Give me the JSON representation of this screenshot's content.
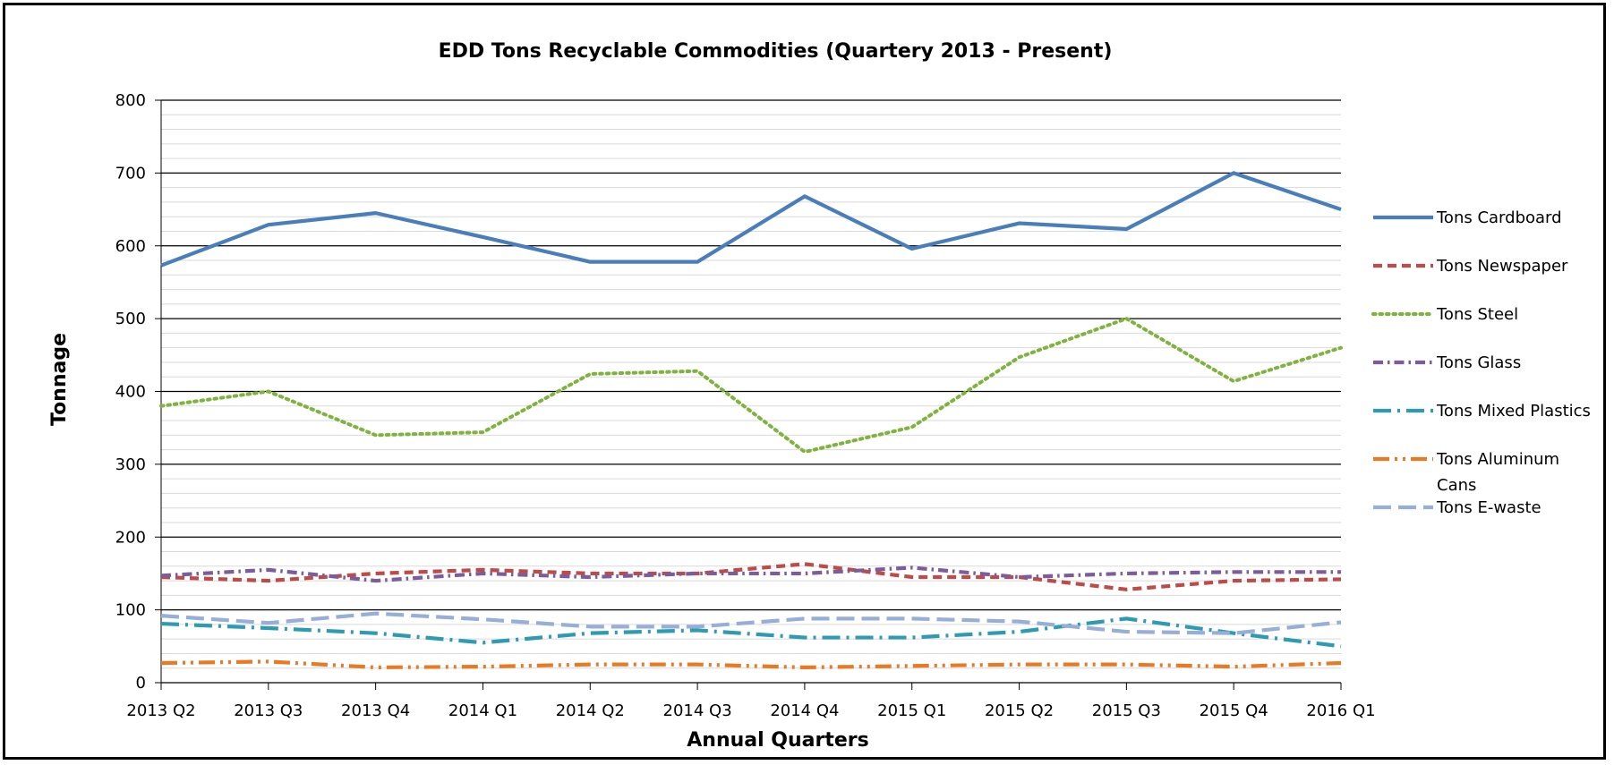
{
  "chart_data": {
    "type": "line",
    "title": "EDD Tons Recyclable Commodities (Quartery 2013 - Present)",
    "xlabel": "Annual Quarters",
    "ylabel": "Tonnage",
    "ylim": [
      0,
      800
    ],
    "ytick_step": 100,
    "minor_gridlines": true,
    "legend_position": "right",
    "categories": [
      "2013 Q2",
      "2013 Q3",
      "2013 Q4",
      "2014 Q1",
      "2014 Q2",
      "2014 Q3",
      "2014 Q4",
      "2015 Q1",
      "2015 Q2",
      "2015 Q3",
      "2015 Q4",
      "2016 Q1"
    ],
    "series": [
      {
        "name": "Tons Cardboard",
        "color": "#4a7ebb",
        "dash": "solid",
        "values": [
          573,
          629,
          645,
          612,
          578,
          578,
          668,
          596,
          631,
          623,
          700,
          650
        ]
      },
      {
        "name": "Tons Newspaper",
        "color": "#be4b48",
        "dash": "dash",
        "values": [
          145,
          140,
          150,
          155,
          150,
          150,
          163,
          145,
          145,
          128,
          140,
          142
        ]
      },
      {
        "name": "Tons Steel",
        "color": "#7fb33e",
        "dash": "dot",
        "values": [
          380,
          400,
          340,
          344,
          424,
          428,
          317,
          351,
          447,
          500,
          414,
          460
        ]
      },
      {
        "name": "Tons Glass",
        "color": "#7b5d9c",
        "dash": "dashdot",
        "values": [
          147,
          155,
          140,
          150,
          145,
          150,
          150,
          158,
          145,
          150,
          152,
          152
        ]
      },
      {
        "name": "Tons Mixed Plastics",
        "color": "#2e9bb1",
        "dash": "longdashdot",
        "values": [
          81,
          75,
          68,
          55,
          68,
          72,
          62,
          62,
          70,
          88,
          68,
          50
        ]
      },
      {
        "name": "Tons Aluminum Cans",
        "color": "#e97a24",
        "dash": "longdashdotdot",
        "values": [
          27,
          29,
          21,
          22,
          25,
          25,
          21,
          23,
          25,
          25,
          22,
          27
        ]
      },
      {
        "name": "Tons E-waste",
        "color": "#97afd6",
        "dash": "longdash",
        "values": [
          92,
          82,
          95,
          87,
          77,
          77,
          88,
          88,
          84,
          70,
          68,
          83
        ]
      }
    ]
  }
}
